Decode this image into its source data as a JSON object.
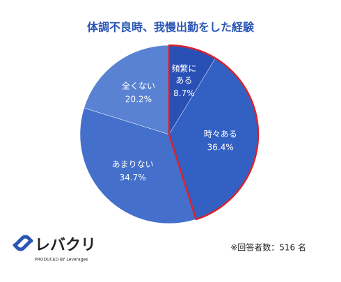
{
  "chart_data": {
    "type": "pie",
    "title": "体調不良時、我慢出勤をした経験",
    "categories": [
      "頻繁に\nある",
      "時々ある",
      "あまりない",
      "全くない"
    ],
    "values": [
      8.7,
      36.4,
      34.7,
      20.2
    ],
    "value_labels": [
      "8.7%",
      "36.4%",
      "34.7%",
      "20.2%"
    ],
    "colors": [
      "#2950b5",
      "#3360c3",
      "#4470cb",
      "#5a82d2"
    ],
    "highlight": [
      0,
      1
    ],
    "highlight_color": "#d9232d",
    "note": "※回答者数：516 名"
  },
  "logo": {
    "name": "レバクリ",
    "tagline": "PRODUCED BY Leverages"
  }
}
